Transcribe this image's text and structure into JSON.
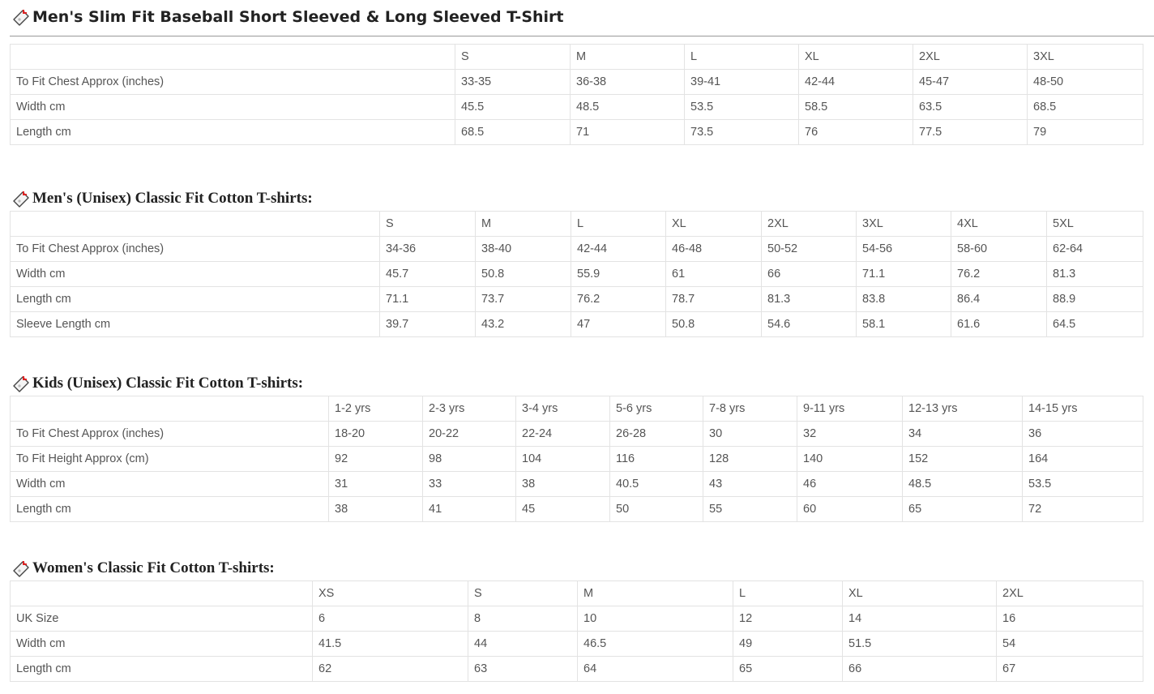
{
  "sections": [
    {
      "title": "Men's Slim Fit Baseball Short Sleeved & Long Sleeved T-Shirt",
      "icon": "tag-icon",
      "headers": [
        "",
        "S",
        "M",
        "L",
        "XL",
        "2XL",
        "3XL"
      ],
      "rows": [
        [
          "To Fit Chest Approx (inches)",
          "33-35",
          "36-38",
          "39-41",
          "42-44",
          "45-47",
          "48-50"
        ],
        [
          "Width cm",
          "45.5",
          "48.5",
          "53.5",
          "58.5",
          "63.5",
          "68.5"
        ],
        [
          "Length cm",
          "68.5",
          "71",
          "73.5",
          "76",
          "77.5",
          "79"
        ]
      ]
    },
    {
      "title": "Men's (Unisex) Classic Fit Cotton T-shirts:",
      "icon": "tag-icon",
      "headers": [
        "",
        "S",
        "M",
        "L",
        "XL",
        "2XL",
        "3XL",
        "4XL",
        "5XL"
      ],
      "rows": [
        [
          "To Fit Chest Approx (inches)",
          "34-36",
          "38-40",
          "42-44",
          "46-48",
          "50-52",
          "54-56",
          "58-60",
          "62-64"
        ],
        [
          "Width cm",
          "45.7",
          "50.8",
          "55.9",
          "61",
          "66",
          "71.1",
          "76.2",
          "81.3"
        ],
        [
          "Length cm",
          "71.1",
          "73.7",
          "76.2",
          "78.7",
          "81.3",
          "83.8",
          "86.4",
          "88.9"
        ],
        [
          "Sleeve Length cm",
          "39.7",
          "43.2",
          "47",
          "50.8",
          "54.6",
          "58.1",
          "61.6",
          "64.5"
        ]
      ]
    },
    {
      "title": "Kids (Unisex) Classic Fit Cotton T-shirts:",
      "icon": "tag-icon",
      "headers": [
        "",
        "1-2 yrs",
        "2-3 yrs",
        "3-4 yrs",
        "5-6 yrs",
        "7-8 yrs",
        "9-11 yrs",
        "12-13 yrs",
        "14-15 yrs"
      ],
      "rows": [
        [
          "To Fit Chest Approx (inches)",
          "18-20",
          "20-22",
          "22-24",
          "26-28",
          "30",
          "32",
          "34",
          "36"
        ],
        [
          "To Fit Height Approx (cm)",
          "92",
          "98",
          "104",
          "116",
          "128",
          "140",
          "152",
          "164"
        ],
        [
          "Width cm",
          "31",
          "33",
          "38",
          "40.5",
          "43",
          "46",
          "48.5",
          "53.5"
        ],
        [
          "Length cm",
          "38",
          "41",
          "45",
          "50",
          "55",
          "60",
          "65",
          "72"
        ]
      ]
    },
    {
      "title": "Women's Classic Fit Cotton T-shirts:",
      "icon": "tag-icon",
      "headers": [
        "",
        "XS",
        "S",
        "M",
        "L",
        "XL",
        "2XL"
      ],
      "rows": [
        [
          "UK Size",
          "6",
          "8",
          "10",
          "12",
          "14",
          "16"
        ],
        [
          "Width cm",
          "41.5",
          "44",
          "46.5",
          "49",
          "51.5",
          "54"
        ],
        [
          "Length cm",
          "62",
          "63",
          "64",
          "65",
          "66",
          "67"
        ]
      ]
    }
  ]
}
